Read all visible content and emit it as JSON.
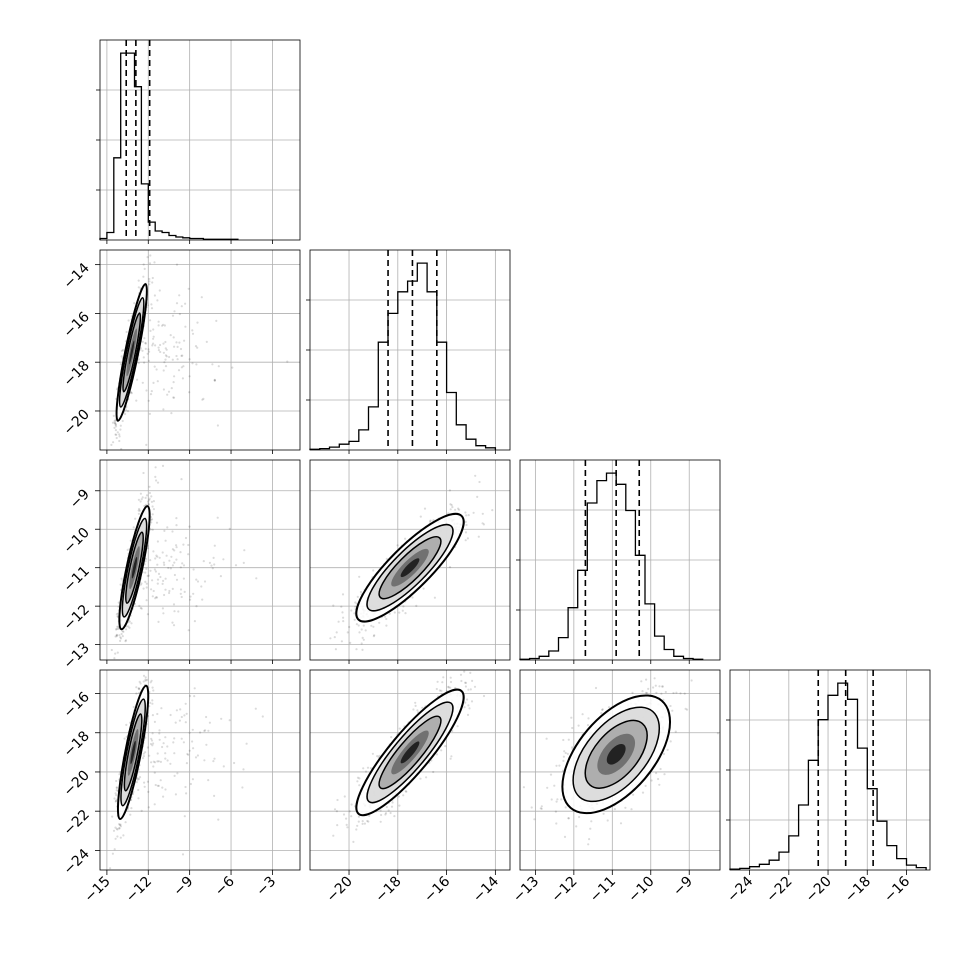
{
  "chart_data": {
    "type": "corner",
    "grid": true,
    "parameters": [
      {
        "range": [
          -15.5,
          -1.0
        ],
        "ticks": [
          "-15",
          "-12",
          "-9",
          "-6",
          "-3"
        ],
        "tick_values": [
          -15,
          -12,
          -9,
          -6,
          -3
        ],
        "quantiles": [
          -13.6,
          -12.9,
          -11.9
        ]
      },
      {
        "range": [
          -21.6,
          -13.4
        ],
        "ticks": [
          "-20",
          "-18",
          "-16",
          "-14"
        ],
        "tick_values": [
          -20,
          -18,
          -16,
          -14
        ],
        "quantiles": [
          -18.4,
          -17.4,
          -16.4
        ]
      },
      {
        "range": [
          -13.4,
          -8.2
        ],
        "ticks": [
          "-13",
          "-12",
          "-11",
          "-10",
          "-9"
        ],
        "tick_values": [
          -13,
          -12,
          -11,
          -10,
          -9
        ],
        "quantiles": [
          -11.7,
          -10.9,
          -10.3
        ]
      },
      {
        "range": [
          -25.0,
          -14.8
        ],
        "ticks": [
          "-24",
          "-22",
          "-20",
          "-18",
          "-16"
        ],
        "tick_values": [
          -24,
          -22,
          -20,
          -18,
          -16
        ],
        "quantiles": [
          -20.5,
          -19.1,
          -17.7
        ]
      }
    ],
    "histograms": [
      {
        "param": 0,
        "bins": [
          -15.5,
          -15.0,
          -14.5,
          -14.0,
          -13.5,
          -13.0,
          -12.5,
          -12.0,
          -11.5,
          -11.0,
          -10.5,
          -10.0,
          -9.5,
          -9.0,
          -8.5,
          -8.0,
          -7.5,
          -7.0,
          -6.5,
          -6.0,
          -5.5
        ],
        "counts": [
          2,
          10,
          110,
          250,
          250,
          205,
          75,
          24,
          12,
          10,
          6,
          4,
          3,
          2,
          2,
          1,
          1,
          1,
          1,
          1
        ]
      },
      {
        "param": 1,
        "bins": [
          -21.6,
          -21.2,
          -20.8,
          -20.4,
          -20.0,
          -19.6,
          -19.2,
          -18.8,
          -18.4,
          -18.0,
          -17.6,
          -17.2,
          -16.8,
          -16.4,
          -16.0,
          -15.6,
          -15.2,
          -14.8,
          -14.4,
          -14.0
        ],
        "counts": [
          1,
          2,
          4,
          8,
          12,
          28,
          60,
          150,
          190,
          220,
          235,
          260,
          220,
          150,
          80,
          35,
          15,
          6,
          3
        ]
      },
      {
        "param": 2,
        "bins": [
          -13.4,
          -13.15,
          -12.9,
          -12.65,
          -12.4,
          -12.15,
          -11.9,
          -11.65,
          -11.4,
          -11.15,
          -10.9,
          -10.65,
          -10.4,
          -10.15,
          -9.9,
          -9.65,
          -9.4,
          -9.15,
          -8.9,
          -8.65
        ],
        "counts": [
          1,
          2,
          5,
          12,
          30,
          70,
          120,
          210,
          240,
          250,
          235,
          200,
          140,
          75,
          32,
          14,
          5,
          2,
          1
        ]
      },
      {
        "param": 3,
        "bins": [
          -25.0,
          -24.5,
          -24.0,
          -23.5,
          -23.0,
          -22.5,
          -22.0,
          -21.5,
          -21.0,
          -20.5,
          -20.0,
          -19.5,
          -19.0,
          -18.5,
          -18.0,
          -17.5,
          -17.0,
          -16.5,
          -16.0,
          -15.5,
          -15.0
        ],
        "counts": [
          1,
          2,
          4,
          7,
          12,
          22,
          42,
          80,
          135,
          185,
          215,
          230,
          210,
          150,
          100,
          60,
          30,
          14,
          6,
          3
        ]
      }
    ],
    "pairs": [
      {
        "x": 0,
        "y": 1,
        "center": [
          -13.2,
          -17.6
        ],
        "sigma": [
          0.55,
          1.4
        ],
        "rho": 0.9
      },
      {
        "x": 0,
        "y": 2,
        "center": [
          -13.0,
          -11.0
        ],
        "sigma": [
          0.55,
          0.8
        ],
        "rho": 0.85
      },
      {
        "x": 0,
        "y": 3,
        "center": [
          -13.1,
          -19.0
        ],
        "sigma": [
          0.55,
          1.7
        ],
        "rho": 0.85
      },
      {
        "x": 1,
        "y": 2,
        "center": [
          -17.5,
          -11.0
        ],
        "sigma": [
          1.1,
          0.7
        ],
        "rho": 0.85
      },
      {
        "x": 1,
        "y": 3,
        "center": [
          -17.5,
          -19.0
        ],
        "sigma": [
          1.1,
          1.6
        ],
        "rho": 0.88
      },
      {
        "x": 2,
        "y": 3,
        "center": [
          -10.9,
          -19.1
        ],
        "sigma": [
          0.7,
          1.5
        ],
        "rho": 0.55
      }
    ]
  }
}
